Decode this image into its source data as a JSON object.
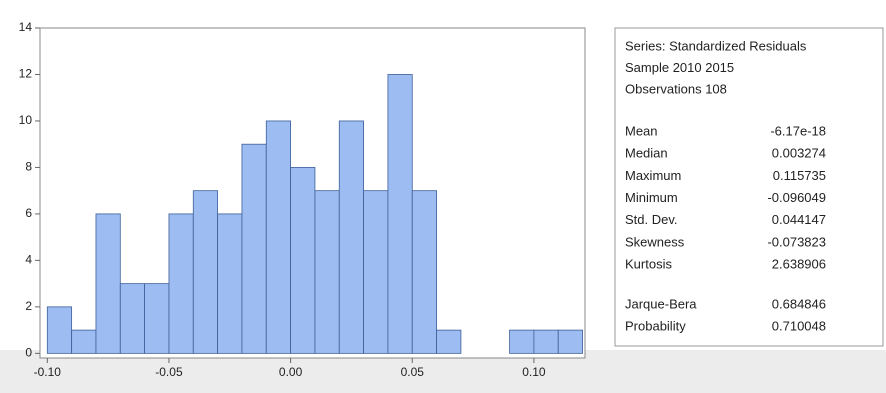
{
  "chart_data": {
    "type": "histogram",
    "bins": [
      -0.1,
      -0.09,
      -0.08,
      -0.07,
      -0.06,
      -0.05,
      -0.04,
      -0.03,
      -0.02,
      -0.01,
      0.0,
      0.01,
      0.02,
      0.03,
      0.04,
      0.05,
      0.06,
      0.07,
      0.08,
      0.09,
      0.1,
      0.11,
      0.12
    ],
    "values": [
      2,
      1,
      6,
      3,
      3,
      6,
      7,
      6,
      9,
      10,
      8,
      7,
      10,
      7,
      12,
      7,
      1,
      0,
      0,
      1,
      1,
      1
    ],
    "color": "#9dbcf2",
    "edge_color": "#3d5f99",
    "xlim": [
      -0.103,
      0.121
    ],
    "ylim": [
      -0.2,
      14
    ],
    "xticks": [
      {
        "value": -0.1,
        "label": "-0.10"
      },
      -0.05,
      {
        "value": 0.0,
        "label": "0.00"
      },
      0.05,
      {
        "value": 0.1,
        "label": "0.10"
      }
    ],
    "yticks": [
      0,
      2,
      4,
      6,
      8,
      10,
      12,
      14
    ],
    "stats_header": [
      "Series: Standardized Residuals",
      "Sample 2010 2015",
      "Observations 108"
    ],
    "stats": [
      {
        "label": "Mean",
        "value": "-6.17e-18"
      },
      {
        "label": "Median",
        "value": "0.003274"
      },
      {
        "label": "Maximum",
        "value": "0.115735"
      },
      {
        "label": "Minimum",
        "value": "-0.096049"
      },
      {
        "label": "Std. Dev.",
        "value": "0.044147"
      },
      {
        "label": "Skewness",
        "value": "-0.073823"
      },
      {
        "label": "Kurtosis",
        "value": "2.638906"
      }
    ],
    "test_stats": [
      {
        "label": "Jarque-Bera",
        "value": "0.684846"
      },
      {
        "label": "Probability",
        "value": "0.710048"
      }
    ]
  }
}
